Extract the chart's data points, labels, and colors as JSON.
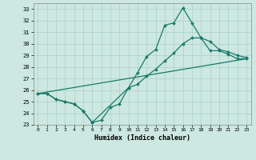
{
  "xlabel": "Humidex (Indice chaleur)",
  "ylabel": "",
  "xlim": [
    -0.5,
    23.5
  ],
  "ylim": [
    23,
    33.5
  ],
  "yticks": [
    23,
    24,
    25,
    26,
    27,
    28,
    29,
    30,
    31,
    32,
    33
  ],
  "xticks": [
    0,
    1,
    2,
    3,
    4,
    5,
    6,
    7,
    8,
    9,
    10,
    11,
    12,
    13,
    14,
    15,
    16,
    17,
    18,
    19,
    20,
    21,
    22,
    23
  ],
  "bg_color": "#cce8e0",
  "line_color": "#1a7a6a",
  "grid_color": "#aacfc8",
  "line1_x": [
    0,
    1,
    2,
    3,
    4,
    5,
    6,
    7,
    8,
    9,
    10,
    11,
    12,
    13,
    14,
    15,
    16,
    17,
    18,
    19,
    20,
    21,
    22,
    23
  ],
  "line1_y": [
    25.7,
    25.7,
    25.2,
    25.0,
    24.8,
    24.2,
    23.2,
    23.4,
    24.5,
    24.8,
    26.2,
    27.5,
    28.9,
    29.5,
    31.6,
    31.8,
    33.1,
    31.8,
    30.5,
    29.4,
    29.4,
    29.1,
    28.7,
    28.7
  ],
  "line2_x": [
    0,
    1,
    2,
    3,
    4,
    5,
    6,
    10,
    11,
    12,
    13,
    14,
    15,
    16,
    17,
    18,
    19,
    20,
    21,
    22,
    23
  ],
  "line2_y": [
    25.7,
    25.7,
    25.2,
    25.0,
    24.8,
    24.2,
    23.2,
    26.2,
    26.5,
    27.2,
    27.8,
    28.5,
    29.2,
    30.0,
    30.5,
    30.5,
    30.2,
    29.5,
    29.3,
    29.0,
    28.8
  ],
  "line3_x": [
    0,
    23
  ],
  "line3_y": [
    25.7,
    28.7
  ]
}
